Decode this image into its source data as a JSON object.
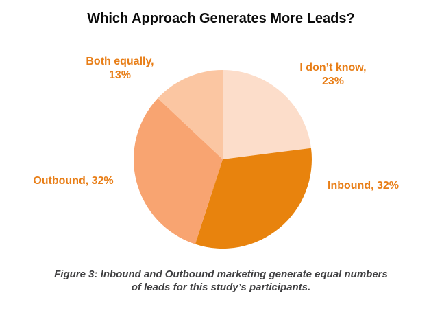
{
  "chart_data": {
    "type": "pie",
    "title": "Which Approach Generates More Leads?",
    "categories": [
      "I don’t know",
      "Inbound",
      "Outbound",
      "Both equally"
    ],
    "values": [
      23,
      32,
      32,
      13
    ],
    "value_unit": "%",
    "colors": [
      "#FCDDCA",
      "#E8830D",
      "#F8A471",
      "#FBC6A2"
    ],
    "start_angle_deg": 0,
    "direction": "clockwise",
    "legend_position": "none",
    "label_color": "#E87E17"
  },
  "labels": {
    "i_dont_know": {
      "line1": "I don’t know,",
      "line2": "23%"
    },
    "inbound": {
      "line1": "Inbound, 32%"
    },
    "outbound": {
      "line1": "Outbound, 32%"
    },
    "both_equally": {
      "line1": "Both equally,",
      "line2": "13%"
    }
  },
  "caption": {
    "line1": "Figure 3: Inbound and Outbound marketing generate equal numbers",
    "line2": "of leads for this study’s participants."
  }
}
